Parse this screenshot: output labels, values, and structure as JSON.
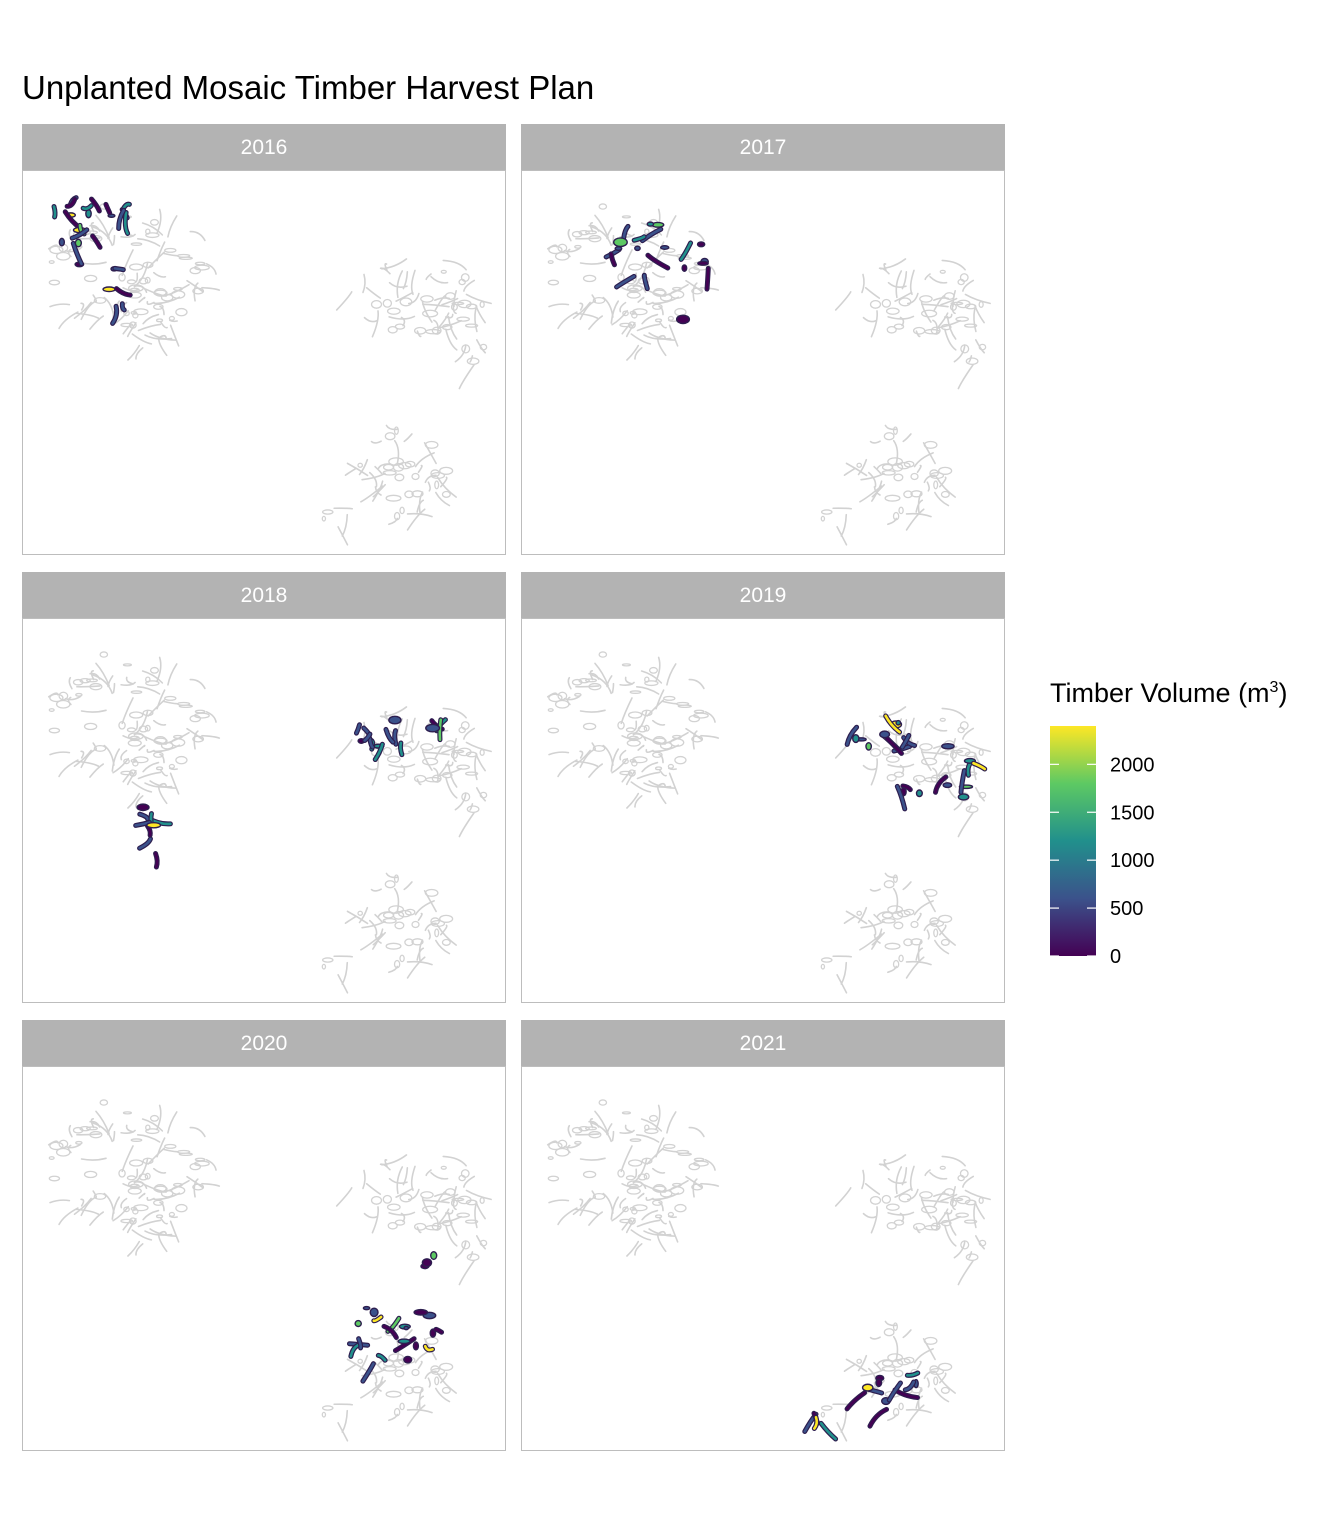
{
  "title": "Unplanted Mosaic Timber Harvest Plan",
  "facets": [
    "2016",
    "2017",
    "2018",
    "2019",
    "2020",
    "2021"
  ],
  "legend": {
    "title_main": "Timber Volume (m",
    "title_sup": "3",
    "title_end": ")",
    "min": 0,
    "max": 2400,
    "ticks": [
      "0",
      "500",
      "1000",
      "1500",
      "2000"
    ],
    "tick_values": [
      0,
      500,
      1000,
      1500,
      2000
    ],
    "colors": [
      "#440154",
      "#3b528b",
      "#21908c",
      "#5dc963",
      "#fde725"
    ]
  },
  "map_colors": {
    "outline": "#d2d2d2",
    "harvest_edge": "#2d1e4f"
  }
}
